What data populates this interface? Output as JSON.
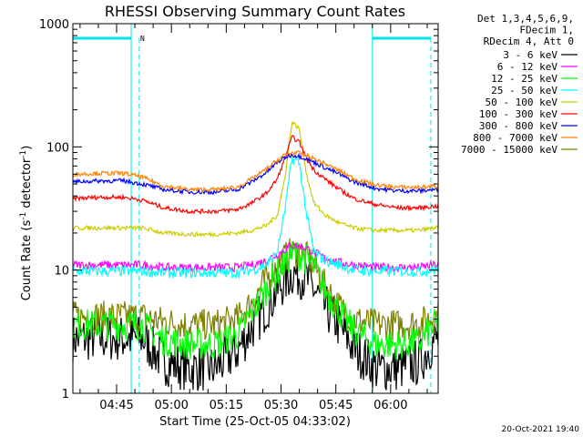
{
  "chart_data": {
    "type": "line",
    "title": "RHESSI Observing Summary Count Rates",
    "xlabel": "Start Time (25-Oct-05 04:33:02)",
    "ylabel": "Count Rate (s⁻¹ detector⁻¹)",
    "yscale": "log",
    "ylim": [
      1,
      1000
    ],
    "xlim": [
      "04:33:02",
      "06:13"
    ],
    "x_ticks": [
      "04:45",
      "05:00",
      "05:15",
      "05:30",
      "05:45",
      "06:00"
    ],
    "y_ticks": [
      "1",
      "10",
      "100",
      "1000"
    ],
    "legend_header": [
      "Det 1,3,4,5,6,9,",
      "FDecim 1,",
      "RDecim 4, Att 0"
    ],
    "legend_position": "right",
    "attenuator_flag_label": "N",
    "timestamp": "20-Oct-2021 19:40",
    "series": [
      {
        "name": "3 - 6 keV",
        "color": "#000000",
        "x": [
          "04:33",
          "04:40",
          "04:47",
          "04:52",
          "04:58",
          "05:05",
          "05:12",
          "05:18",
          "05:22",
          "05:26",
          "05:30",
          "05:33",
          "05:36",
          "05:39",
          "05:42",
          "05:46",
          "05:50",
          "05:56",
          "06:02",
          "06:08",
          "06:12"
        ],
        "values": [
          2.8,
          2.8,
          2.8,
          2.8,
          1.8,
          1.6,
          1.6,
          2.2,
          3.4,
          5.0,
          7.5,
          9.5,
          9.0,
          7.0,
          5.0,
          3.5,
          2.3,
          1.6,
          1.6,
          1.8,
          2.7
        ]
      },
      {
        "name": "6 - 12 keV",
        "color": "#ff00ff",
        "x": [
          "04:33",
          "04:40",
          "04:47",
          "04:52",
          "04:58",
          "05:05",
          "05:12",
          "05:18",
          "05:22",
          "05:26",
          "05:30",
          "05:33",
          "05:36",
          "05:39",
          "05:42",
          "05:46",
          "05:50",
          "05:56",
          "06:02",
          "06:08",
          "06:12"
        ],
        "values": [
          11,
          11,
          11,
          11,
          10.5,
          10.5,
          10.5,
          10.5,
          11,
          12,
          14,
          16,
          15.5,
          14,
          12.5,
          11.5,
          11,
          10.5,
          10.5,
          10.5,
          11
        ]
      },
      {
        "name": "12 - 25 keV",
        "color": "#00ff00",
        "x": [
          "04:33",
          "04:40",
          "04:47",
          "04:52",
          "04:58",
          "05:05",
          "05:12",
          "05:18",
          "05:22",
          "05:26",
          "05:30",
          "05:33",
          "05:36",
          "05:39",
          "05:42",
          "05:46",
          "05:50",
          "05:56",
          "06:02",
          "06:08",
          "06:12"
        ],
        "values": [
          3.6,
          3.6,
          3.6,
          3.6,
          2.7,
          2.5,
          2.5,
          3.0,
          4.5,
          7.0,
          10.5,
          13.5,
          13.0,
          10.5,
          7.0,
          4.6,
          3.2,
          2.5,
          2.5,
          2.6,
          3.6
        ]
      },
      {
        "name": "25 - 50 keV",
        "color": "#00ffff",
        "x": [
          "04:33",
          "04:40",
          "04:47",
          "04:52",
          "04:58",
          "05:05",
          "05:12",
          "05:18",
          "05:22",
          "05:26",
          "05:29",
          "05:31",
          "05:33",
          "05:35",
          "05:37",
          "05:39",
          "05:42",
          "05:46",
          "05:50",
          "05:56",
          "06:02",
          "06:08",
          "06:12"
        ],
        "values": [
          9.8,
          9.8,
          9.8,
          9.8,
          9.5,
          9.5,
          9.5,
          9.5,
          10,
          11,
          14,
          30,
          80,
          75,
          28,
          14,
          12,
          11,
          10,
          9.8,
          9.8,
          9.8,
          10
        ]
      },
      {
        "name": "50 - 100 keV",
        "color": "#cccc00",
        "x": [
          "04:33",
          "04:40",
          "04:47",
          "04:52",
          "04:58",
          "05:05",
          "05:12",
          "05:18",
          "05:22",
          "05:26",
          "05:29",
          "05:31",
          "05:33",
          "05:35",
          "05:37",
          "05:39",
          "05:42",
          "05:46",
          "05:50",
          "05:56",
          "06:02",
          "06:08",
          "06:12"
        ],
        "values": [
          22,
          22,
          22,
          22,
          20,
          19.5,
          19.5,
          20,
          21,
          23,
          28,
          55,
          160,
          140,
          60,
          35,
          28,
          24,
          22,
          21,
          21,
          21,
          22
        ]
      },
      {
        "name": "100 - 300 keV",
        "color": "#ff0000",
        "x": [
          "04:33",
          "04:40",
          "04:47",
          "04:52",
          "04:58",
          "05:05",
          "05:12",
          "05:18",
          "05:22",
          "05:26",
          "05:29",
          "05:31",
          "05:33",
          "05:35",
          "05:37",
          "05:39",
          "05:42",
          "05:46",
          "05:50",
          "05:56",
          "06:02",
          "06:08",
          "06:12"
        ],
        "values": [
          38,
          39,
          39,
          37,
          32,
          30,
          30,
          31,
          35,
          42,
          55,
          80,
          120,
          110,
          80,
          65,
          55,
          45,
          38,
          34,
          32,
          32,
          33
        ]
      },
      {
        "name": "300 - 800 keV",
        "color": "#0000ff",
        "x": [
          "04:33",
          "04:40",
          "04:47",
          "04:52",
          "04:58",
          "05:05",
          "05:12",
          "05:18",
          "05:22",
          "05:26",
          "05:29",
          "05:31",
          "05:33",
          "05:35",
          "05:37",
          "05:39",
          "05:42",
          "05:46",
          "05:50",
          "05:56",
          "06:02",
          "06:08",
          "06:12"
        ],
        "values": [
          52,
          53,
          53,
          50,
          45,
          43,
          43,
          45,
          52,
          62,
          75,
          82,
          86,
          84,
          80,
          75,
          68,
          60,
          52,
          46,
          44,
          44,
          45
        ]
      },
      {
        "name": "800 - 7000 keV",
        "color": "#ff8000",
        "x": [
          "04:33",
          "04:40",
          "04:47",
          "04:52",
          "04:58",
          "05:05",
          "05:12",
          "05:18",
          "05:22",
          "05:26",
          "05:29",
          "05:31",
          "05:33",
          "05:35",
          "05:37",
          "05:39",
          "05:42",
          "05:46",
          "05:50",
          "05:56",
          "06:02",
          "06:08",
          "06:12"
        ],
        "values": [
          60,
          61,
          61,
          57,
          48,
          45,
          45,
          47,
          55,
          66,
          78,
          86,
          90,
          89,
          85,
          80,
          73,
          64,
          55,
          49,
          47,
          47,
          48
        ]
      },
      {
        "name": "7000 - 15000 keV",
        "color": "#808000",
        "x": [
          "04:33",
          "04:40",
          "04:47",
          "04:52",
          "04:58",
          "05:05",
          "05:12",
          "05:18",
          "05:22",
          "05:26",
          "05:30",
          "05:33",
          "05:36",
          "05:39",
          "05:42",
          "05:46",
          "05:50",
          "05:56",
          "06:02",
          "06:08",
          "06:12"
        ],
        "values": [
          4.2,
          4.2,
          4.2,
          4.2,
          3.8,
          3.6,
          3.6,
          4.0,
          5.5,
          8.5,
          12,
          14,
          13.5,
          11,
          7.5,
          5.0,
          4.0,
          3.6,
          3.6,
          3.7,
          4.2
        ]
      }
    ],
    "attenuator_bars": [
      {
        "start": "04:33",
        "end": "04:49"
      },
      {
        "start": "05:55",
        "end": "06:11"
      }
    ]
  }
}
